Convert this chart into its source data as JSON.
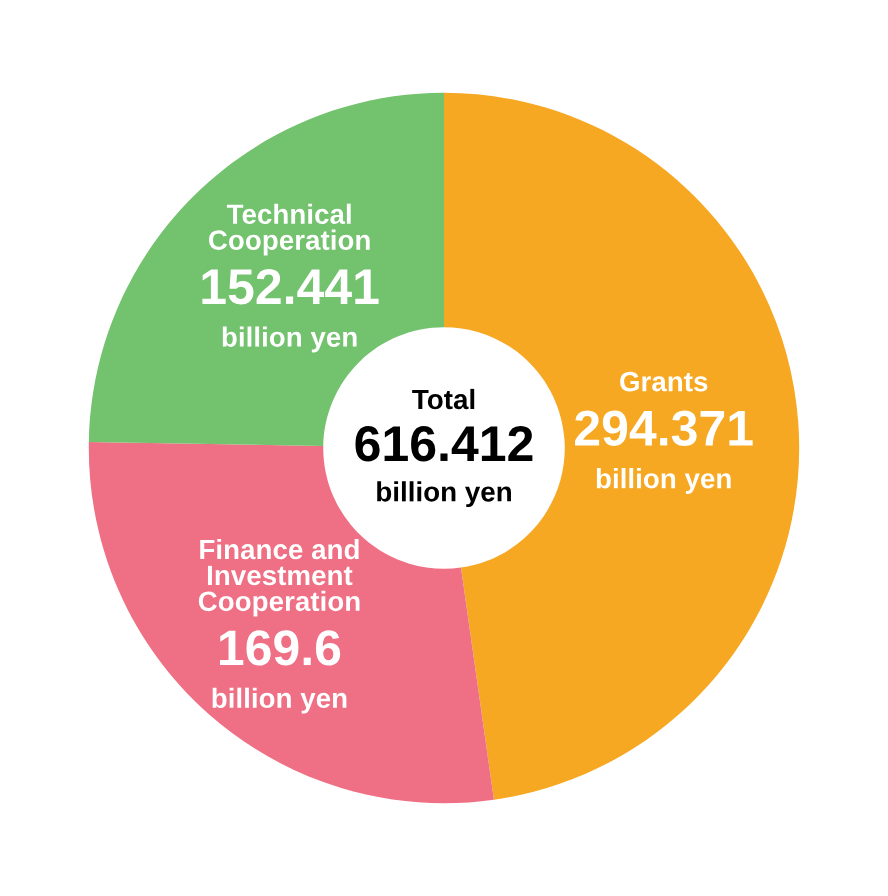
{
  "chart_data": {
    "type": "donut",
    "categories": [
      "Grants",
      "Finance and\nInvestment\nCooperation",
      "Technical\nCooperation"
    ],
    "values": [
      294.371,
      169.6,
      152.441
    ],
    "colors": [
      "#f7a823",
      "#ef6f84",
      "#72c26e"
    ],
    "value_labels": [
      "294.371 billion yen",
      "169.6 billion yen",
      "152.441 billion yen"
    ],
    "annotations": [
      "Total",
      "616.412",
      "billion yen"
    ],
    "legend": false
  }
}
